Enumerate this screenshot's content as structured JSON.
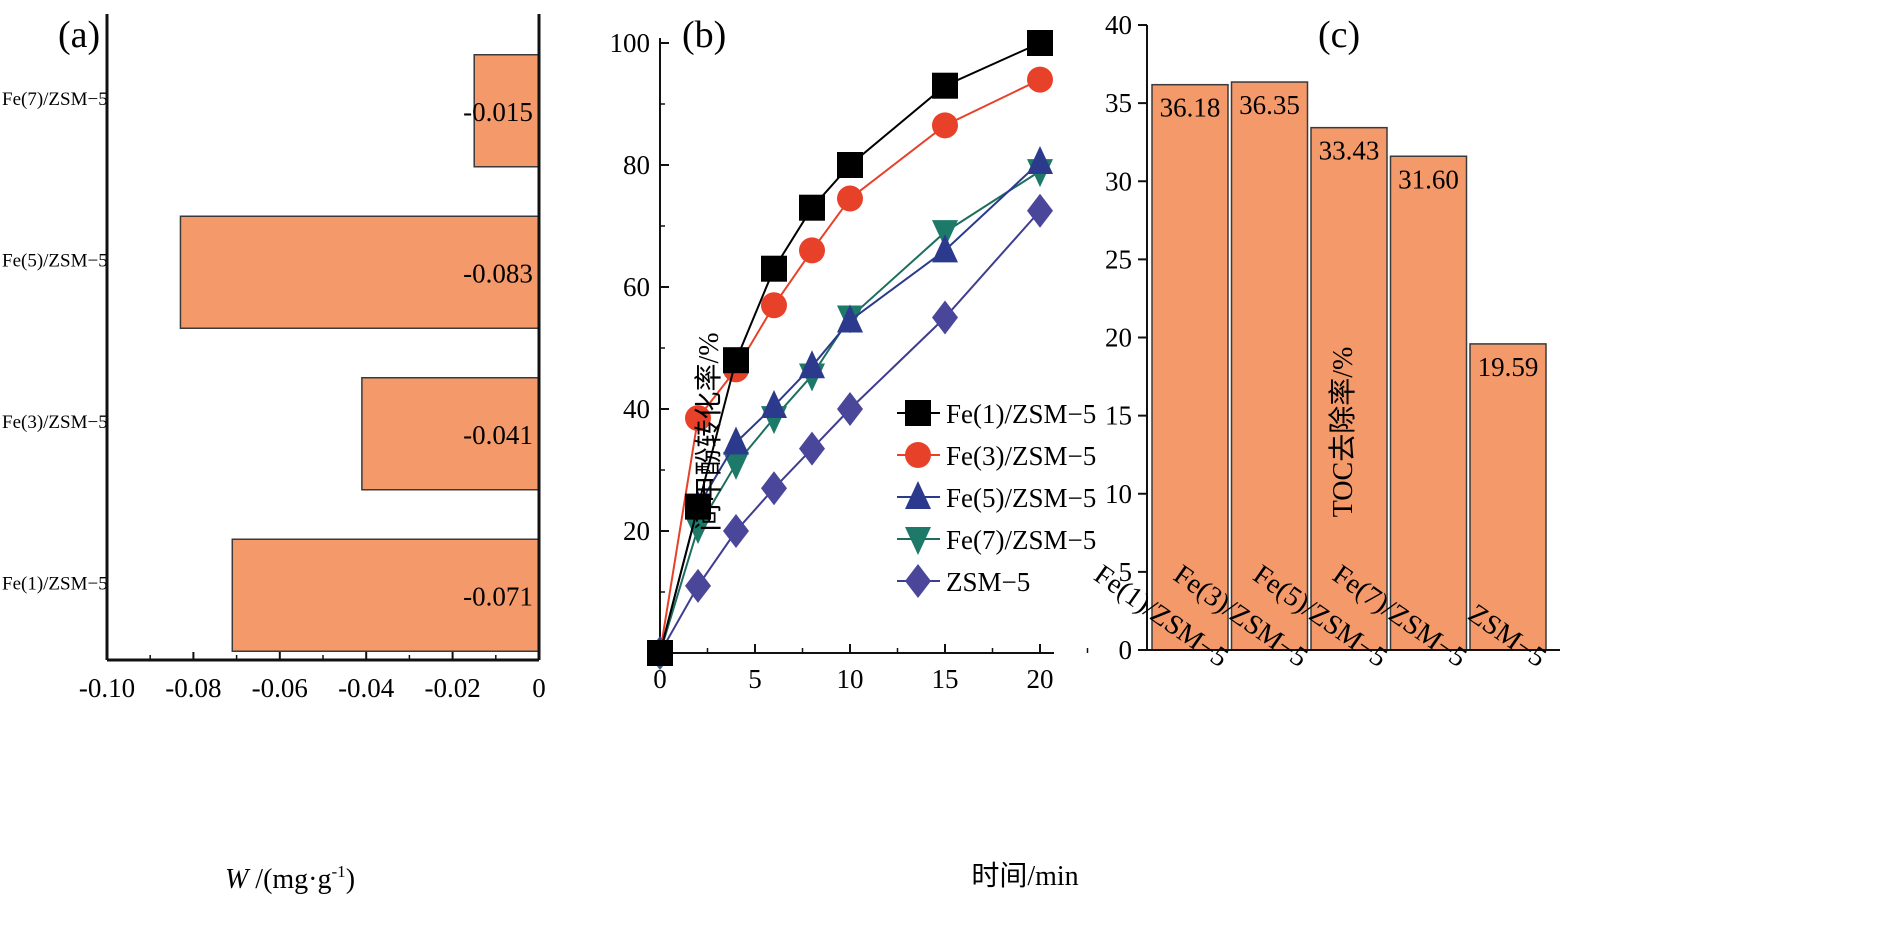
{
  "colors": {
    "bar_fill": "#f4996a",
    "bar_stroke": "#3a3a3a",
    "axis": "#111111"
  },
  "chart_data": [
    {
      "panel": "(a)",
      "type": "bar",
      "orientation": "horizontal",
      "categories": [
        "Fe(7)/ZSM−5",
        "Fe(5)/ZSM−5",
        "Fe(3)/ZSM−5",
        "Fe(1)/ZSM−5"
      ],
      "values": [
        -0.015,
        -0.083,
        -0.041,
        -0.071
      ],
      "value_labels": [
        "-0.015",
        "-0.083",
        "-0.041",
        "-0.071"
      ],
      "xlabel_symbol": "W",
      "xlabel_unit": " /(mg·g",
      "xlabel_sup": "-1",
      "xlabel_close": ")",
      "xlim": [
        -0.1,
        0
      ],
      "xticks": [
        -0.1,
        -0.08,
        -0.06,
        -0.04,
        -0.02,
        0
      ],
      "xtick_labels": [
        "-0.10",
        "-0.08",
        "-0.06",
        "-0.04",
        "-0.02",
        "0"
      ]
    },
    {
      "panel": "(b)",
      "type": "line",
      "x": [
        0,
        2,
        4,
        6,
        8,
        10,
        15,
        20
      ],
      "series": [
        {
          "name": "Fe(1)/ZSM−5",
          "marker": "square",
          "color": "#000000",
          "fill": "#000000",
          "values": [
            0,
            24,
            48,
            63,
            73,
            80,
            93,
            100
          ]
        },
        {
          "name": "Fe(3)/ZSM−5",
          "marker": "circle",
          "color": "#e8412a",
          "fill": "#e8412a",
          "values": [
            0,
            38.5,
            46.5,
            57,
            66,
            74.5,
            86.5,
            94
          ]
        },
        {
          "name": "Fe(5)/ZSM−5",
          "marker": "triangle-up",
          "color": "#2b3a8c",
          "fill": "#2b3a8c",
          "values": [
            0,
            24,
            34.5,
            40.5,
            47,
            54.5,
            66,
            80.5
          ]
        },
        {
          "name": "Fe(7)/ZSM−5",
          "marker": "triangle-down",
          "color": "#1e6e5e",
          "fill": "#1e7a68",
          "values": [
            0,
            20.5,
            31,
            38.5,
            45.5,
            55,
            69,
            79
          ]
        },
        {
          "name": "ZSM−5",
          "marker": "diamond",
          "color": "#3f3d8f",
          "fill": "#4a479a",
          "values": [
            0,
            11,
            20,
            27,
            33.5,
            40,
            55,
            72.5
          ]
        }
      ],
      "xlabel": "时间/min",
      "ylabel": "间甲酚转化率/%",
      "xlim": [
        0,
        20
      ],
      "ylim": [
        0,
        100
      ],
      "xticks": [
        0,
        5,
        10,
        15,
        20
      ],
      "yticks": [
        20,
        40,
        60,
        80,
        100
      ],
      "xtick_labels": [
        "0",
        "5",
        "10",
        "15",
        "20"
      ],
      "ytick_labels": [
        "20",
        "40",
        "60",
        "80",
        "100"
      ],
      "legend_position": "lower-right"
    },
    {
      "panel": "(c)",
      "type": "bar",
      "categories": [
        "Fe(1)/ZSM−5",
        "Fe(3)/ZSM−5",
        "Fe(5)/ZSM−5",
        "Fe(7)/ZSM−5",
        "ZSM−5"
      ],
      "values": [
        36.18,
        36.35,
        33.43,
        31.6,
        19.59
      ],
      "value_labels": [
        "36.18",
        "36.35",
        "33.43",
        "31.60",
        "19.59"
      ],
      "ylabel": "TOC去除率/%",
      "ylim": [
        0,
        40
      ],
      "yticks": [
        0,
        5,
        10,
        15,
        20,
        25,
        30,
        35,
        40
      ],
      "ytick_labels": [
        "0",
        "5",
        "10",
        "15",
        "20",
        "25",
        "30",
        "35",
        "40"
      ]
    }
  ]
}
